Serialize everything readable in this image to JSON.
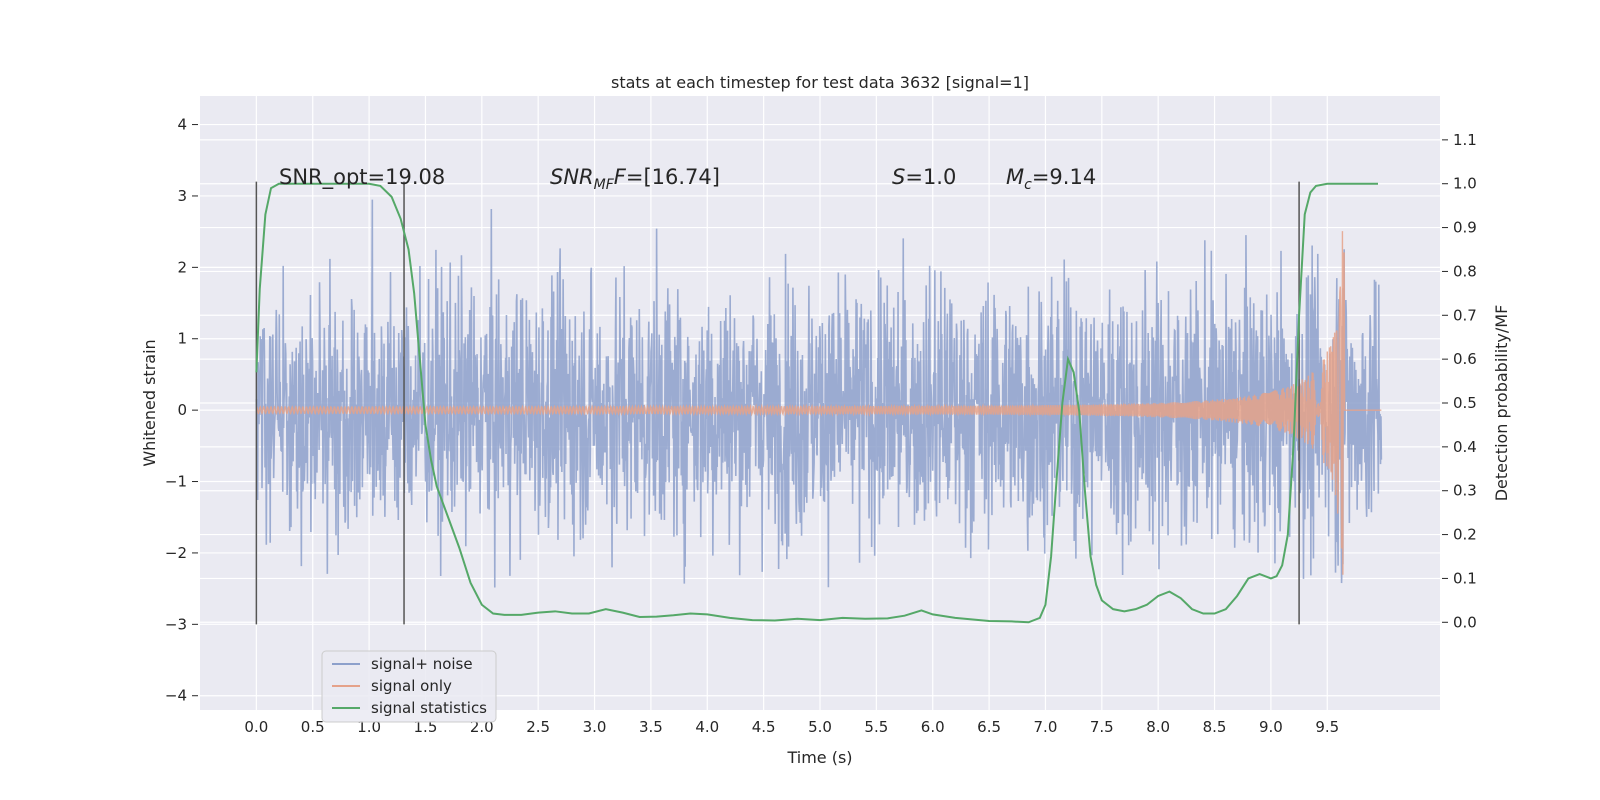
{
  "chart_data": {
    "type": "line",
    "title": "stats at each timestep for test data 3632 [signal=1]",
    "xlabel": "Time (s)",
    "ylabel": "Whitened strain",
    "y2label": "Detection probability/MF",
    "xlim": [
      -0.5,
      10.5
    ],
    "ylim": [
      -4.2,
      4.4
    ],
    "y2lim": [
      -0.2,
      1.2
    ],
    "xticks": [
      0.0,
      0.5,
      1.0,
      1.5,
      2.0,
      2.5,
      3.0,
      3.5,
      4.0,
      4.5,
      5.0,
      5.5,
      6.0,
      6.5,
      7.0,
      7.5,
      8.0,
      8.5,
      9.0,
      9.5
    ],
    "xtick_labels": [
      "0.0",
      "0.5",
      "1.0",
      "1.5",
      "2.0",
      "2.5",
      "3.0",
      "3.5",
      "4.0",
      "4.5",
      "5.0",
      "5.5",
      "6.0",
      "6.5",
      "7.0",
      "7.5",
      "8.0",
      "8.5",
      "9.0",
      "9.5"
    ],
    "yticks": [
      4,
      3,
      2,
      1,
      0,
      -1,
      -2,
      -3,
      -4
    ],
    "ytick_labels": [
      "4",
      "3",
      "2",
      "1",
      "0",
      "−1",
      "−2",
      "−3",
      "−4"
    ],
    "y2ticks": [
      1.1,
      1.0,
      0.9,
      0.8,
      0.7,
      0.6,
      0.5,
      0.4,
      0.3,
      0.2,
      0.1,
      0.0
    ],
    "y2tick_labels": [
      "1.1",
      "1.0",
      "0.9",
      "0.8",
      "0.7",
      "0.6",
      "0.5",
      "0.4",
      "0.3",
      "0.2",
      "0.1",
      "0.0"
    ],
    "grid": true,
    "legend_position": "lower-left",
    "annotations": {
      "snr_opt": "SNR_opt=19.08",
      "snr_mf_main": "SNR",
      "snr_mf_sub": "MF",
      "snr_mf_rest": "=[16.74]",
      "s_main": "S",
      "s_rest": "=1.0",
      "mc_main": "M",
      "mc_sub": "c",
      "mc_rest": "=9.14"
    },
    "vertical_lines_x": [
      0.0,
      1.31,
      9.25
    ],
    "vertical_lines_yrange": [
      -3.0,
      3.2
    ],
    "noise_x_range": [
      0.0,
      9.98
    ],
    "signal_merger_time": 9.65,
    "series": [
      {
        "name": "signal+ noise",
        "color": "#8da0cb"
      },
      {
        "name": "signal only",
        "color": "#e5a28a"
      },
      {
        "name": "signal statistics",
        "color": "#55a868",
        "points": [
          [
            0.0,
            0.57
          ],
          [
            0.03,
            0.76
          ],
          [
            0.08,
            0.93
          ],
          [
            0.13,
            0.99
          ],
          [
            0.2,
            1.0
          ],
          [
            0.4,
            1.0
          ],
          [
            0.6,
            1.0
          ],
          [
            0.8,
            1.0
          ],
          [
            1.0,
            1.0
          ],
          [
            1.1,
            0.995
          ],
          [
            1.2,
            0.97
          ],
          [
            1.28,
            0.92
          ],
          [
            1.35,
            0.85
          ],
          [
            1.4,
            0.75
          ],
          [
            1.45,
            0.6
          ],
          [
            1.5,
            0.45
          ],
          [
            1.55,
            0.37
          ],
          [
            1.6,
            0.31
          ],
          [
            1.7,
            0.24
          ],
          [
            1.8,
            0.17
          ],
          [
            1.9,
            0.09
          ],
          [
            2.0,
            0.04
          ],
          [
            2.1,
            0.02
          ],
          [
            2.2,
            0.017
          ],
          [
            2.35,
            0.017
          ],
          [
            2.5,
            0.022
          ],
          [
            2.65,
            0.025
          ],
          [
            2.8,
            0.02
          ],
          [
            2.95,
            0.02
          ],
          [
            3.1,
            0.03
          ],
          [
            3.25,
            0.022
          ],
          [
            3.4,
            0.012
          ],
          [
            3.55,
            0.013
          ],
          [
            3.7,
            0.016
          ],
          [
            3.85,
            0.02
          ],
          [
            4.0,
            0.018
          ],
          [
            4.2,
            0.01
          ],
          [
            4.4,
            0.005
          ],
          [
            4.6,
            0.004
          ],
          [
            4.8,
            0.008
          ],
          [
            5.0,
            0.005
          ],
          [
            5.2,
            0.01
          ],
          [
            5.4,
            0.008
          ],
          [
            5.6,
            0.009
          ],
          [
            5.75,
            0.015
          ],
          [
            5.9,
            0.027
          ],
          [
            6.0,
            0.018
          ],
          [
            6.2,
            0.01
          ],
          [
            6.5,
            0.003
          ],
          [
            6.7,
            0.002
          ],
          [
            6.85,
            0.0
          ],
          [
            6.95,
            0.01
          ],
          [
            7.0,
            0.04
          ],
          [
            7.05,
            0.15
          ],
          [
            7.1,
            0.33
          ],
          [
            7.15,
            0.5
          ],
          [
            7.2,
            0.6
          ],
          [
            7.25,
            0.57
          ],
          [
            7.3,
            0.48
          ],
          [
            7.35,
            0.3
          ],
          [
            7.4,
            0.15
          ],
          [
            7.45,
            0.085
          ],
          [
            7.5,
            0.05
          ],
          [
            7.6,
            0.03
          ],
          [
            7.7,
            0.025
          ],
          [
            7.8,
            0.03
          ],
          [
            7.9,
            0.04
          ],
          [
            8.0,
            0.06
          ],
          [
            8.1,
            0.07
          ],
          [
            8.2,
            0.055
          ],
          [
            8.3,
            0.03
          ],
          [
            8.4,
            0.02
          ],
          [
            8.5,
            0.02
          ],
          [
            8.6,
            0.03
          ],
          [
            8.7,
            0.06
          ],
          [
            8.8,
            0.1
          ],
          [
            8.9,
            0.11
          ],
          [
            9.0,
            0.1
          ],
          [
            9.05,
            0.105
          ],
          [
            9.1,
            0.13
          ],
          [
            9.15,
            0.2
          ],
          [
            9.2,
            0.4
          ],
          [
            9.25,
            0.7
          ],
          [
            9.3,
            0.93
          ],
          [
            9.35,
            0.98
          ],
          [
            9.4,
            0.995
          ],
          [
            9.5,
            1.0
          ],
          [
            9.95,
            1.0
          ]
        ]
      }
    ]
  }
}
